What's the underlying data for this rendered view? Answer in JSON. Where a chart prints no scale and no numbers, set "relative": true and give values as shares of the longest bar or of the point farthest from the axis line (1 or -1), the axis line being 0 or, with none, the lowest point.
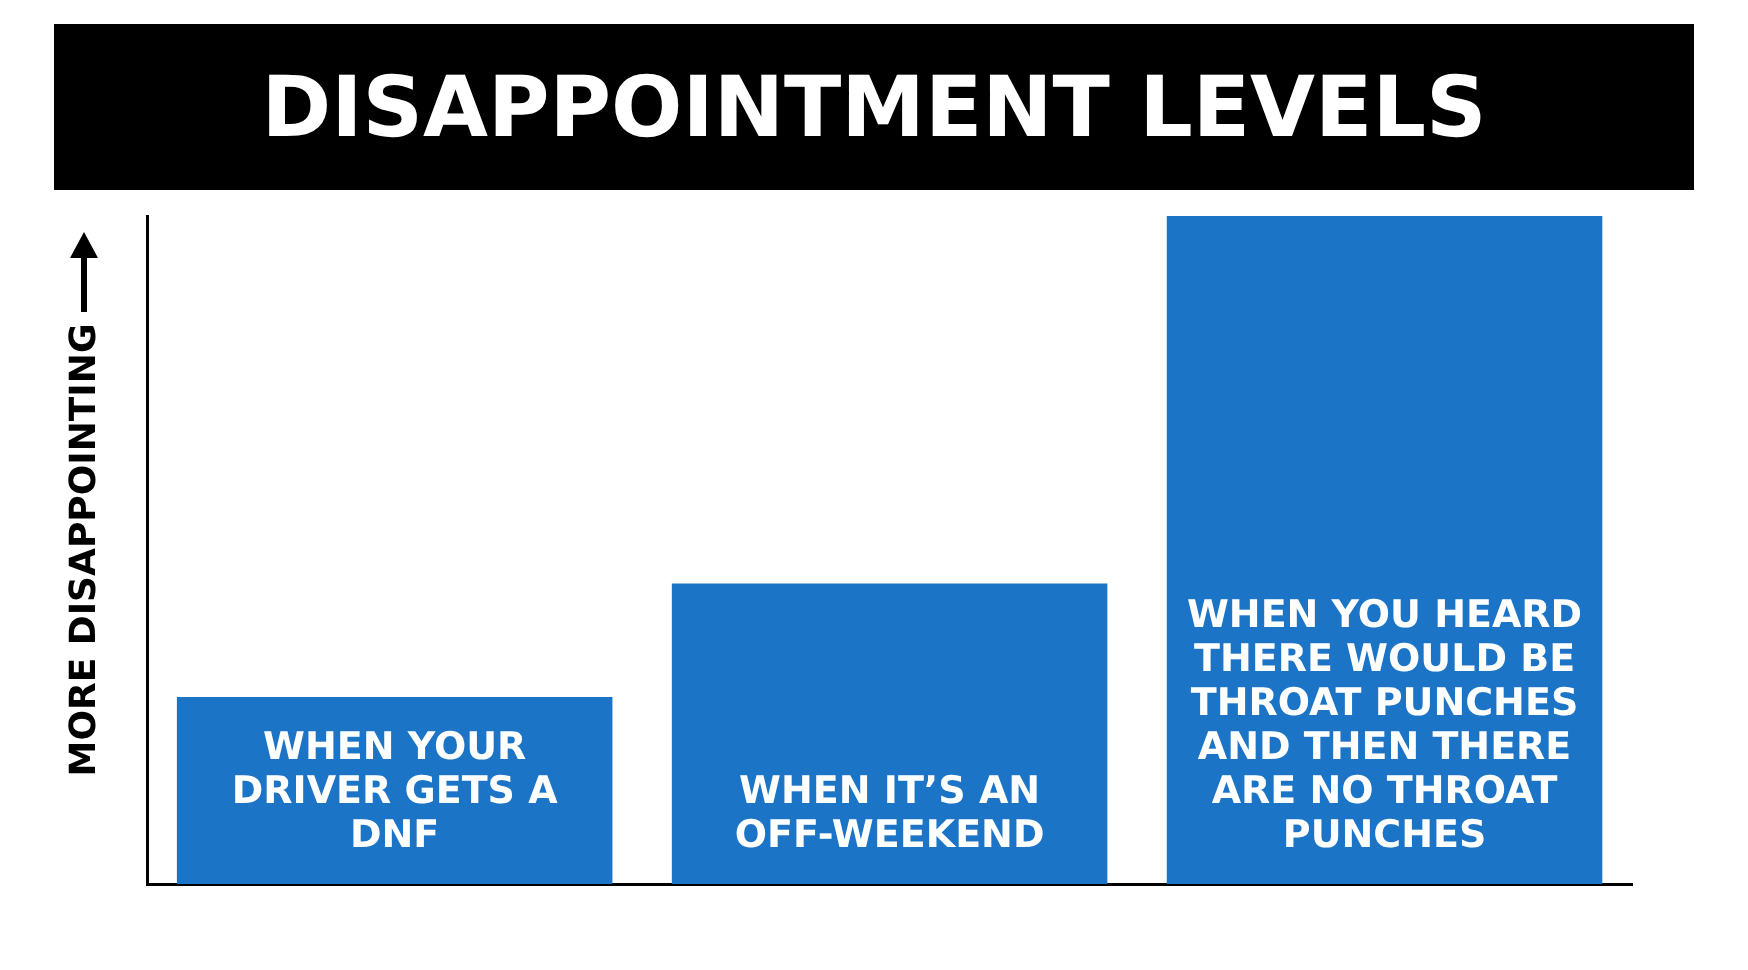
{
  "chart_data": {
    "type": "bar",
    "title": "DISAPPOINTMENT LEVELS",
    "ylabel": "MORE DISAPPOINTING",
    "categories": [
      "WHEN YOUR DRIVER GETS A DNF",
      "WHEN IT’S AN OFF-WEEKEND",
      "WHEN YOU HEARD THERE WOULD BE THROAT PUNCHES AND THEN THERE ARE NO THROAT PUNCHES"
    ],
    "values": [
      0.28,
      0.45,
      1
    ],
    "color": "#1b74c5",
    "relative": true
  }
}
